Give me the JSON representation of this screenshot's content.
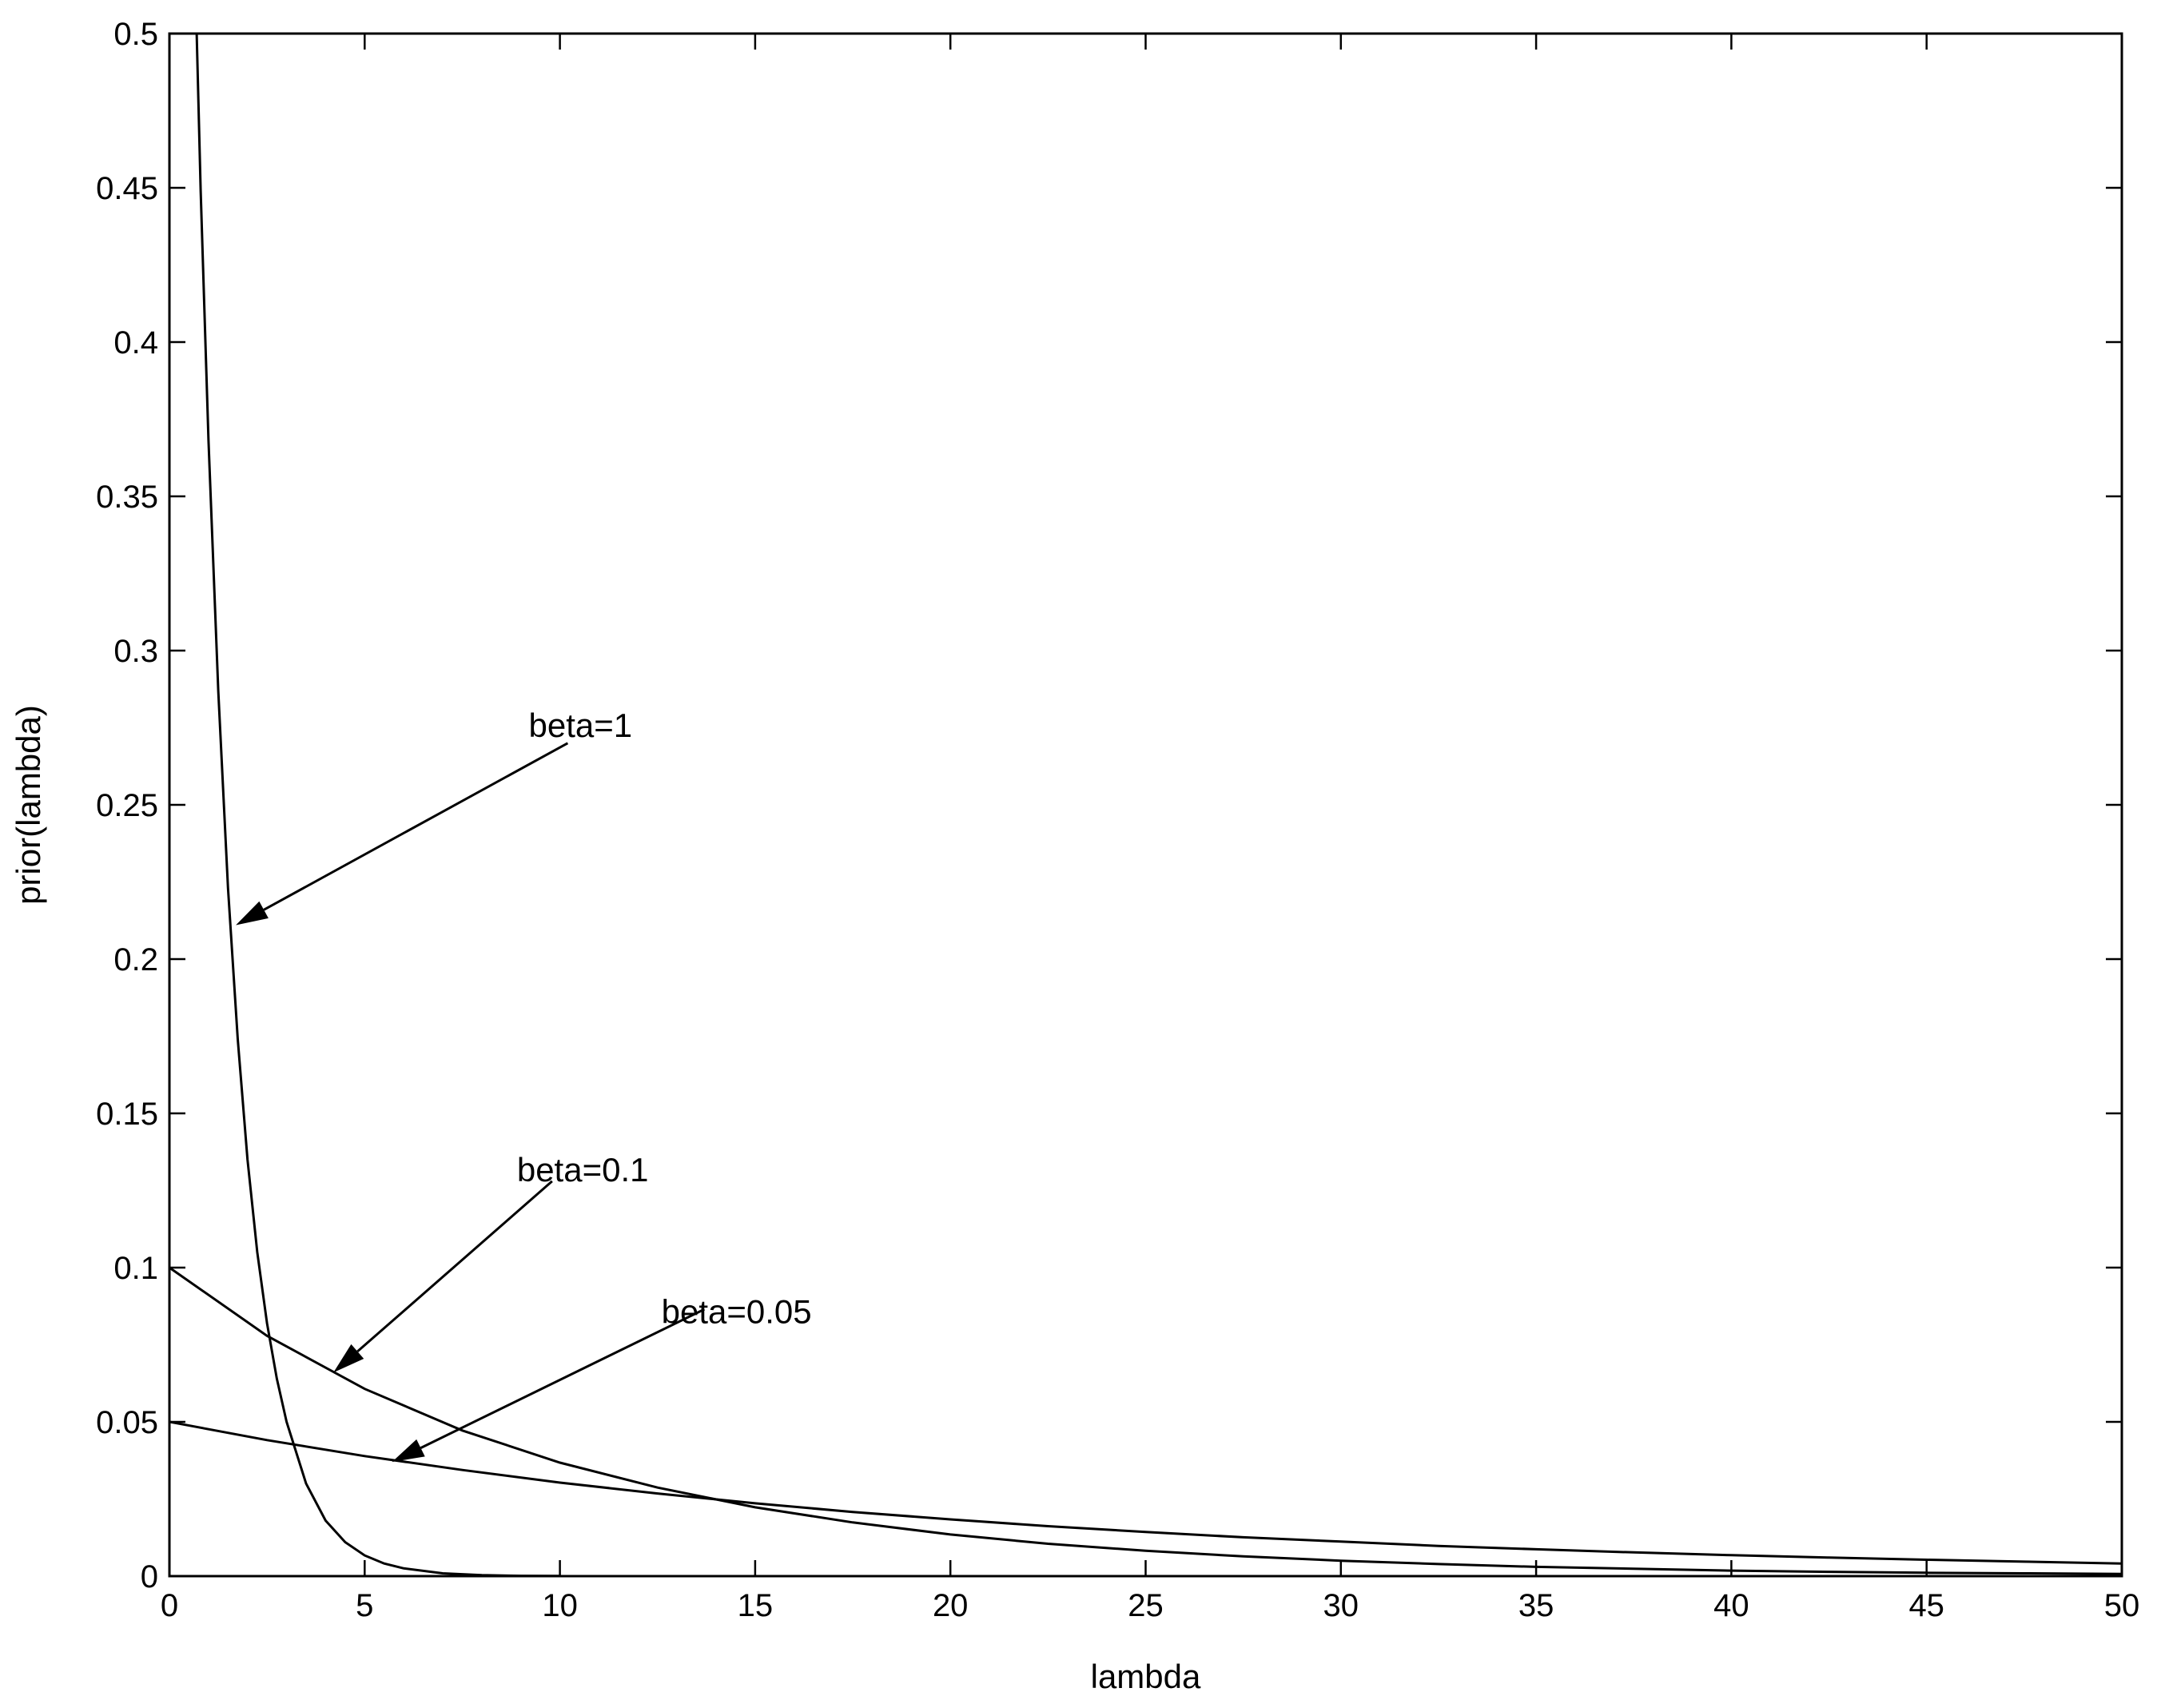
{
  "chart_data": {
    "type": "line",
    "title": "",
    "xlabel": "lambda",
    "ylabel": "prior(lambda)",
    "xlim": [
      0,
      50
    ],
    "ylim": [
      0,
      0.5
    ],
    "xticks": [
      0,
      5,
      10,
      15,
      20,
      25,
      30,
      35,
      40,
      45,
      50
    ],
    "xtick_labels": [
      "0",
      "5",
      "10",
      "15",
      "20",
      "25",
      "30",
      "35",
      "40",
      "45",
      "50"
    ],
    "yticks": [
      0,
      0.05,
      0.1,
      0.15,
      0.2,
      0.25,
      0.3,
      0.35,
      0.4,
      0.45,
      0.5
    ],
    "ytick_labels": [
      "0",
      "0.05",
      "0.1",
      "0.15",
      "0.2",
      "0.25",
      "0.3",
      "0.35",
      "0.4",
      "0.45",
      "0.5"
    ],
    "grid": false,
    "line_color": "#000000",
    "series": [
      {
        "beta": 1,
        "x": [
          0.6,
          0.8,
          1,
          1.25,
          1.5,
          1.75,
          2,
          2.25,
          2.5,
          2.75,
          3,
          3.5,
          4,
          4.5,
          5,
          5.5,
          6,
          7,
          8,
          9,
          10
        ],
        "y": [
          0.549,
          0.449,
          0.368,
          0.287,
          0.223,
          0.174,
          0.135,
          0.105,
          0.082,
          0.064,
          0.05,
          0.03,
          0.018,
          0.011,
          0.0067,
          0.0041,
          0.0025,
          0.0009,
          0.0003,
          0.0001,
          5e-05
        ]
      },
      {
        "beta": 0.1,
        "x": [
          0,
          2.5,
          5,
          7.5,
          10,
          12.5,
          15,
          17.5,
          20,
          22.5,
          25,
          27.5,
          30,
          32.5,
          35,
          37.5,
          40,
          42.5,
          45,
          47.5,
          50
        ],
        "y": [
          0.1,
          0.0779,
          0.0607,
          0.0472,
          0.0368,
          0.0287,
          0.0223,
          0.0174,
          0.0135,
          0.0105,
          0.0082,
          0.0064,
          0.005,
          0.0039,
          0.003,
          0.0024,
          0.0018,
          0.0014,
          0.0011,
          0.0009,
          0.0007
        ]
      },
      {
        "beta": 0.05,
        "x": [
          0,
          2.5,
          5,
          7.5,
          10,
          12.5,
          15,
          17.5,
          20,
          22.5,
          25,
          27.5,
          30,
          32.5,
          35,
          37.5,
          40,
          42.5,
          45,
          47.5,
          50
        ],
        "y": [
          0.05,
          0.0441,
          0.0389,
          0.0344,
          0.0303,
          0.0268,
          0.0236,
          0.0208,
          0.0184,
          0.0162,
          0.0143,
          0.0126,
          0.0112,
          0.0098,
          0.0087,
          0.0077,
          0.0068,
          0.006,
          0.0053,
          0.0047,
          0.0041
        ]
      }
    ],
    "annotations": [
      {
        "text": "beta=1",
        "label_x": 9.2,
        "label_y": 0.272,
        "tail_x": 10.2,
        "tail_y": 0.27,
        "head_x": 1.7,
        "head_y": 0.211
      },
      {
        "text": "beta=0.1",
        "label_x": 8.9,
        "label_y": 0.128,
        "tail_x": 9.8,
        "tail_y": 0.128,
        "head_x": 4.2,
        "head_y": 0.066
      },
      {
        "text": "beta=0.05",
        "label_x": 12.6,
        "label_y": 0.082,
        "tail_x": 13.7,
        "tail_y": 0.0865,
        "head_x": 5.7,
        "head_y": 0.037
      }
    ]
  }
}
